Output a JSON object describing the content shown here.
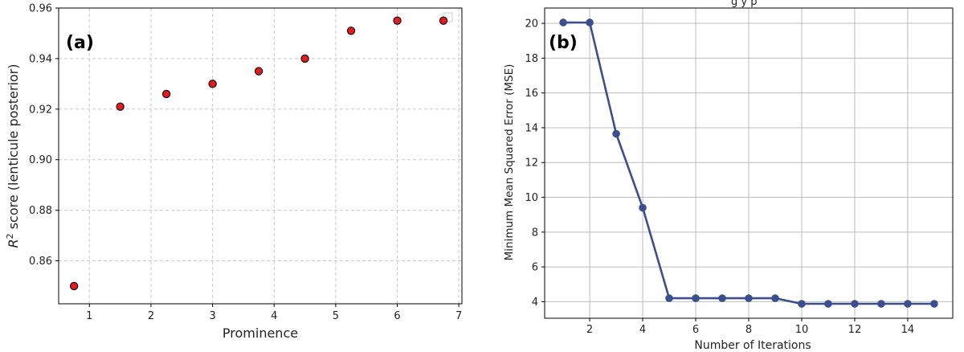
{
  "chart_data": [
    {
      "type": "scatter",
      "panel_label": "(a)",
      "xlabel": "Prominence",
      "ylabel_prefix": "R",
      "ylabel_sup": "2",
      "ylabel_rest": " score (lenticule posterior)",
      "x": [
        0.75,
        1.5,
        2.25,
        3.0,
        3.75,
        4.5,
        5.25,
        6.0,
        6.75
      ],
      "y": [
        0.85,
        0.921,
        0.926,
        0.93,
        0.935,
        0.94,
        0.951,
        0.955,
        0.955
      ],
      "xlim": [
        0.5,
        7.05
      ],
      "ylim": [
        0.843,
        0.96
      ],
      "xticks": [
        1,
        2,
        3,
        4,
        5,
        6,
        7
      ],
      "yticks": [
        0.86,
        0.88,
        0.9,
        0.92,
        0.94,
        0.96
      ],
      "ytick_labels": [
        "0.86",
        "0.88",
        "0.90",
        "0.92",
        "0.94",
        "0.96"
      ],
      "grid": "dashed",
      "marker_color": "#e41a1c",
      "marker_edge": "#111111",
      "legend": "top-right (empty)"
    },
    {
      "type": "line",
      "panel_label": "(b)",
      "title_partial": "g        y       p",
      "xlabel": "Number of Iterations",
      "ylabel": "Minimum Mean Squared Error (MSE)",
      "x": [
        1,
        2,
        3,
        4,
        5,
        6,
        7,
        8,
        9,
        10,
        11,
        12,
        13,
        14,
        15
      ],
      "y": [
        20.05,
        20.05,
        13.65,
        9.4,
        4.2,
        4.2,
        4.2,
        4.2,
        4.2,
        3.88,
        3.88,
        3.88,
        3.88,
        3.88,
        3.88
      ],
      "xlim": [
        0.3,
        15.7
      ],
      "ylim": [
        3.05,
        20.88
      ],
      "xticks": [
        2,
        4,
        6,
        8,
        10,
        12,
        14
      ],
      "yticks": [
        4,
        6,
        8,
        10,
        12,
        14,
        16,
        18,
        20
      ],
      "grid": "solid",
      "line_color": "#3a4f8c"
    }
  ]
}
